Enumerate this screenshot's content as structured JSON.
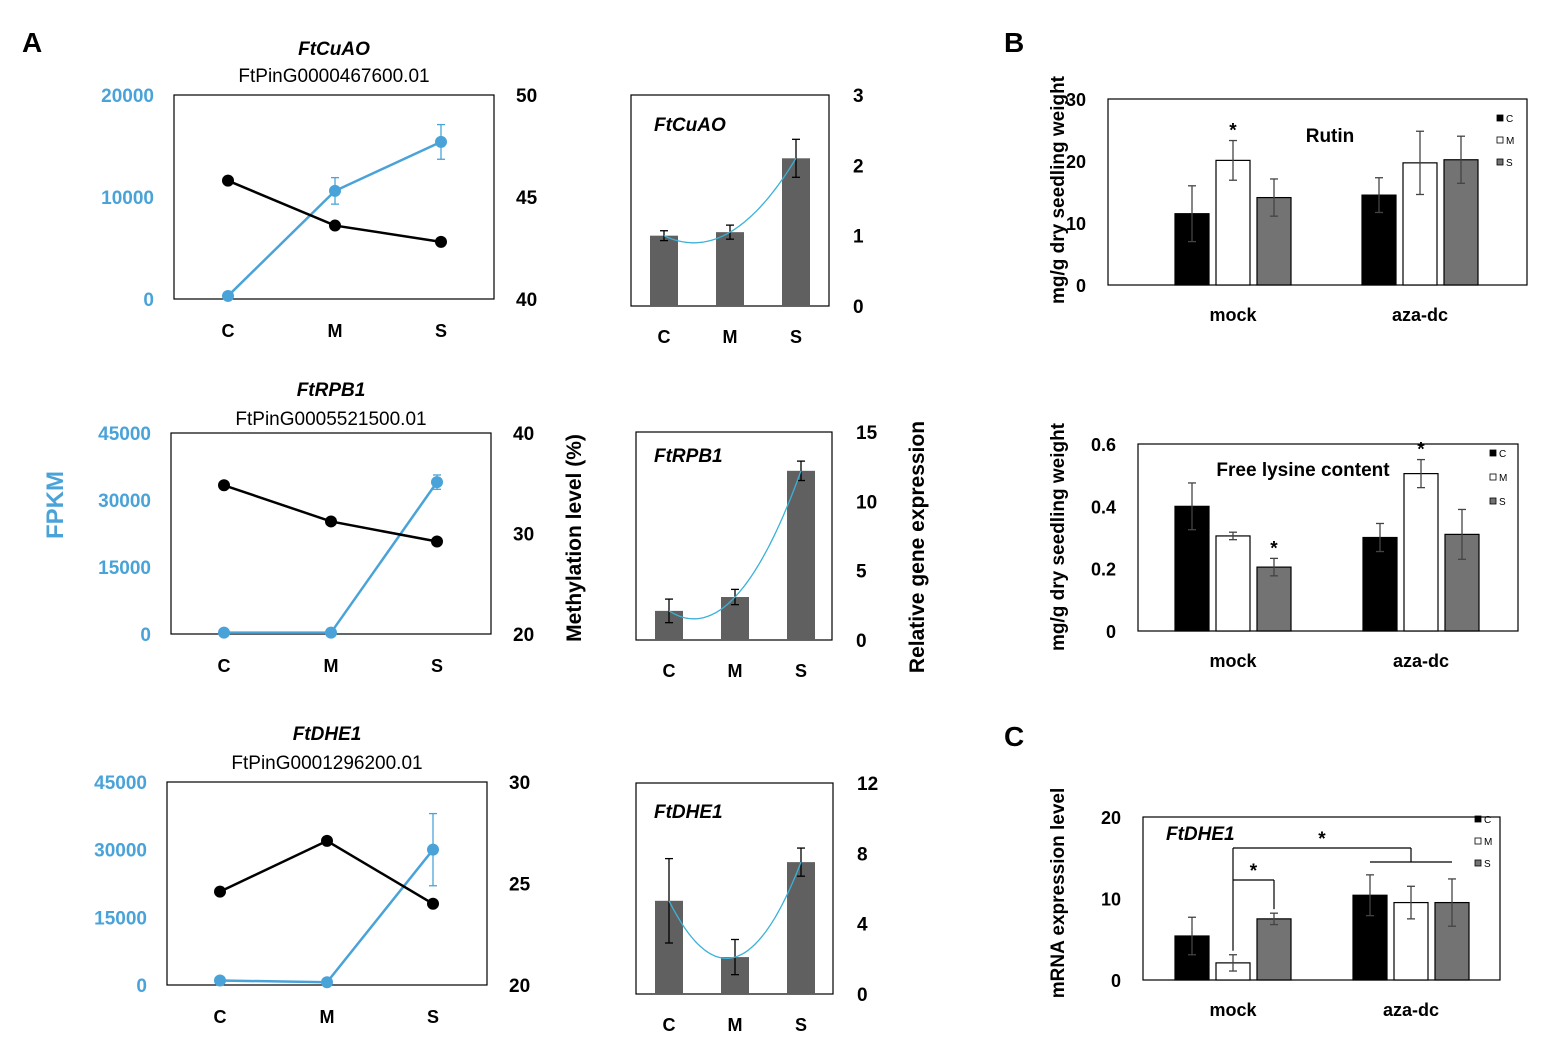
{
  "panel_labels": {
    "a": "A",
    "b": "B",
    "c": "C"
  },
  "colors": {
    "fpkm": "#4aa3d8",
    "methylation": "#000000",
    "bar": "#606060",
    "bar_c": "#000000",
    "bar_m": "#ffffff",
    "bar_s": "#737373",
    "fit_curve": "#3bb1d8"
  },
  "shared_axis_labels": {
    "fpkm": "FPKM",
    "methylation": "Methylation level (%)",
    "relative_expression": "Relative gene expression",
    "b_ylabel": "mg/g dry seedling weight",
    "c_ylabel": "mRNA expression level"
  },
  "chart_data": [
    {
      "id": "a1",
      "type": "line",
      "title": "FtCuAO",
      "subtitle": "FtPinG0000467600.01",
      "categories": [
        "C",
        "M",
        "S"
      ],
      "series": [
        {
          "name": "FPKM",
          "axis": "left",
          "values": [
            300,
            10600,
            15400
          ],
          "errors": [
            0,
            1300,
            1700
          ]
        },
        {
          "name": "Methylation level (%)",
          "axis": "right",
          "values": [
            45.8,
            43.6,
            42.8
          ]
        }
      ],
      "ylim_left": [
        0,
        20000
      ],
      "yticks_left": [
        "0",
        "10000",
        "20000"
      ],
      "ylim_right": [
        40,
        50
      ],
      "yticks_right": [
        "40",
        "45",
        "50"
      ]
    },
    {
      "id": "a2",
      "type": "line",
      "title": "FtRPB1",
      "subtitle": "FtPinG0005521500.01",
      "categories": [
        "C",
        "M",
        "S"
      ],
      "series": [
        {
          "name": "FPKM",
          "axis": "left",
          "values": [
            300,
            300,
            34000
          ],
          "errors": [
            0,
            0,
            1600
          ]
        },
        {
          "name": "Methylation level (%)",
          "axis": "right",
          "values": [
            34.8,
            31.2,
            29.2
          ]
        }
      ],
      "ylim_left": [
        0,
        45000
      ],
      "yticks_left": [
        "0",
        "15000",
        "30000",
        "45000"
      ],
      "ylim_right": [
        20,
        40
      ],
      "yticks_right": [
        "20",
        "30",
        "40"
      ]
    },
    {
      "id": "a3",
      "type": "line",
      "title": "FtDHE1",
      "subtitle": "FtPinG0001296200.01",
      "categories": [
        "C",
        "M",
        "S"
      ],
      "series": [
        {
          "name": "FPKM",
          "axis": "left",
          "values": [
            1000,
            600,
            30000
          ],
          "errors": [
            0,
            0,
            8000
          ]
        },
        {
          "name": "Methylation level (%)",
          "axis": "right",
          "values": [
            24.6,
            27.1,
            24.0
          ]
        }
      ],
      "ylim_left": [
        0,
        45000
      ],
      "yticks_left": [
        "0",
        "15000",
        "30000",
        "45000"
      ],
      "ylim_right": [
        20,
        30
      ],
      "yticks_right": [
        "20",
        "25",
        "30"
      ]
    },
    {
      "id": "a4",
      "type": "bar",
      "title": "FtCuAO",
      "categories": [
        "C",
        "M",
        "S"
      ],
      "values": [
        1.0,
        1.05,
        2.1
      ],
      "errors": [
        0.07,
        0.1,
        0.27
      ],
      "ylim": [
        0,
        3
      ],
      "yticks": [
        "0",
        "1",
        "2",
        "3"
      ],
      "fit": "quadratic"
    },
    {
      "id": "a5",
      "type": "bar",
      "title": "FtRPB1",
      "categories": [
        "C",
        "M",
        "S"
      ],
      "values": [
        2.1,
        3.1,
        12.2
      ],
      "errors": [
        0.85,
        0.55,
        0.7
      ],
      "ylim": [
        0,
        15
      ],
      "yticks": [
        "0",
        "5",
        "10",
        "15"
      ],
      "fit": "quadratic"
    },
    {
      "id": "a6",
      "type": "bar",
      "title": "FtDHE1",
      "categories": [
        "C",
        "M",
        "S"
      ],
      "values": [
        5.3,
        2.1,
        7.5
      ],
      "errors": [
        2.4,
        1.0,
        0.8
      ],
      "ylim": [
        0,
        12
      ],
      "yticks": [
        "0",
        "4",
        "8",
        "12"
      ],
      "fit": "quadratic"
    },
    {
      "id": "b1",
      "type": "bar",
      "title": "Rutin",
      "groups": [
        "mock",
        "aza-dc"
      ],
      "series": [
        {
          "name": "C",
          "values": [
            11.5,
            14.5
          ],
          "errors": [
            4.5,
            2.8
          ]
        },
        {
          "name": "M",
          "values": [
            20.1,
            19.7
          ],
          "errors": [
            3.2,
            5.1
          ]
        },
        {
          "name": "S",
          "values": [
            14.1,
            20.2
          ],
          "errors": [
            3.0,
            3.8
          ]
        }
      ],
      "ylim": [
        0,
        30
      ],
      "yticks": [
        "0",
        "10",
        "20",
        "30"
      ],
      "legend": "top-right",
      "annotations": [
        {
          "text": "*",
          "group": 0,
          "series": 1
        }
      ]
    },
    {
      "id": "b2",
      "type": "bar",
      "title": "Free lysine content",
      "groups": [
        "mock",
        "aza-dc"
      ],
      "series": [
        {
          "name": "C",
          "values": [
            0.4,
            0.3
          ],
          "errors": [
            0.075,
            0.045
          ]
        },
        {
          "name": "M",
          "values": [
            0.305,
            0.505
          ],
          "errors": [
            0.012,
            0.045
          ]
        },
        {
          "name": "S",
          "values": [
            0.205,
            0.31
          ],
          "errors": [
            0.028,
            0.08
          ]
        }
      ],
      "ylim": [
        0,
        0.6
      ],
      "yticks": [
        "0",
        "0.2",
        "0.4",
        "0.6"
      ],
      "legend": "top-right",
      "annotations": [
        {
          "text": "*",
          "group": 0,
          "series": 2
        },
        {
          "text": "*",
          "group": 1,
          "series": 1
        }
      ]
    },
    {
      "id": "c1",
      "type": "bar",
      "title": "FtDHE1",
      "groups": [
        "mock",
        "aza-dc"
      ],
      "series": [
        {
          "name": "C",
          "values": [
            5.4,
            10.4
          ],
          "errors": [
            2.3,
            2.5
          ]
        },
        {
          "name": "M",
          "values": [
            2.1,
            9.5
          ],
          "errors": [
            1.0,
            2.0
          ]
        },
        {
          "name": "S",
          "values": [
            7.5,
            9.5
          ],
          "errors": [
            0.7,
            2.9
          ]
        }
      ],
      "ylim": [
        0,
        20
      ],
      "yticks": [
        "0",
        "10",
        "20"
      ],
      "legend": "top-right",
      "annotations": [
        {
          "text": "*",
          "label": "mock M vs mock S"
        },
        {
          "text": "*",
          "label": "mock M vs aza-dc"
        }
      ]
    }
  ]
}
